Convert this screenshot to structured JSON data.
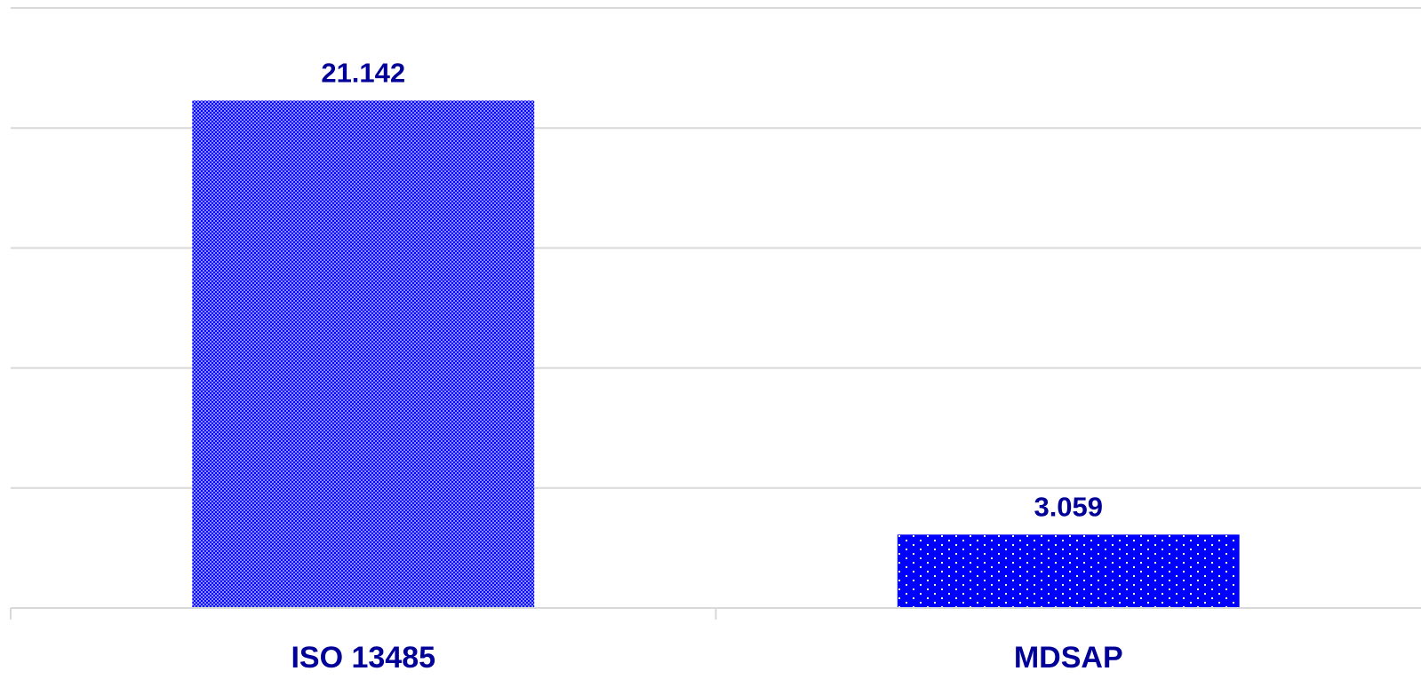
{
  "chart_data": {
    "type": "bar",
    "categories": [
      "ISO 13485",
      "MDSAP"
    ],
    "values": [
      21.142,
      3.059
    ],
    "value_labels": [
      "21.142",
      "3.059"
    ],
    "title": "",
    "xlabel": "",
    "ylabel": "",
    "ylim": [
      0,
      25
    ],
    "grid": true,
    "legend": "none",
    "colors": {
      "bar_fill": "#0000ff",
      "bar_pattern_light": "#6b6bff",
      "label": "#000099",
      "gridline": "#d9d9d9"
    }
  }
}
